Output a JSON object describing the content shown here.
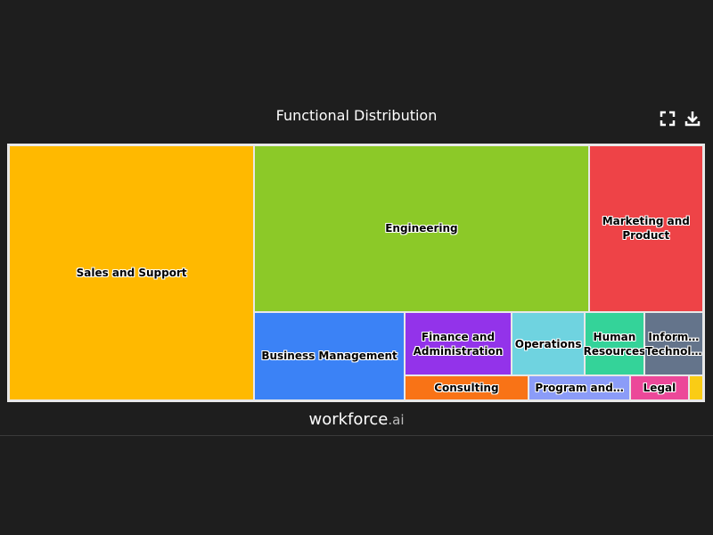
{
  "chart_data": {
    "type": "treemap",
    "title": "Functional Distribution",
    "categories": [
      "Sales and Support",
      "Engineering",
      "Marketing and Product",
      "Business Management",
      "Finance and Administration",
      "Operations",
      "Human Resources",
      "Inform… Technol…",
      "Consulting",
      "Program and…",
      "Legal",
      null
    ],
    "values": [
      34.8,
      31.0,
      10.6,
      7.4,
      3.8,
      2.6,
      2.1,
      2.1,
      1.7,
      1.4,
      0.8,
      0.2
    ],
    "colors": [
      "#ffb900",
      "#8cc928",
      "#ee4347",
      "#3b82f6",
      "#9333ea",
      "#6fd3e0",
      "#34d399",
      "#64748b",
      "#f97316",
      "#8b9cf8",
      "#ec4899",
      "#facc15"
    ]
  },
  "footer": {
    "brand": "workforce",
    "suffix": ".ai"
  }
}
